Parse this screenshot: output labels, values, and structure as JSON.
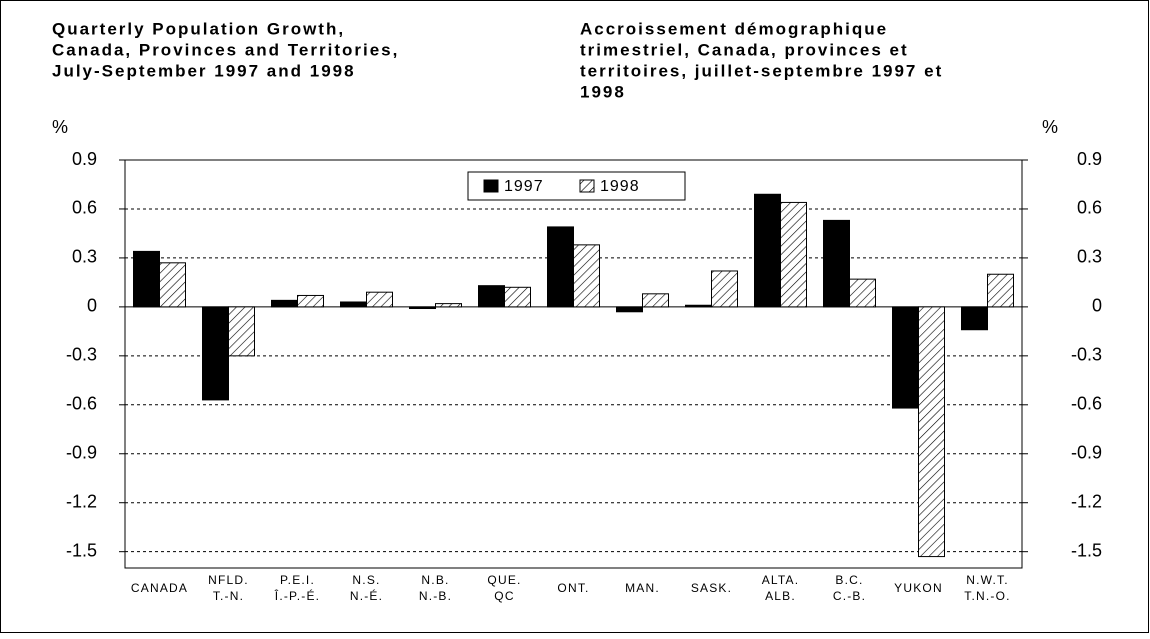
{
  "chart_data": {
    "type": "bar",
    "title_lines": [
      "Quarterly Population Growth,",
      "Canada, Provinces and Territories,",
      "July-September 1997 and 1998"
    ],
    "subtitle_lines": [
      "Accroissement démographique",
      "trimestriel, Canada, provinces et",
      "territoires, juillet-septembre 1997 et",
      "1998"
    ],
    "y_label": "%",
    "categories": [
      [
        "CANADA"
      ],
      [
        "NFLD.",
        "T.-N."
      ],
      [
        "P.E.I.",
        "Î.-P.-É."
      ],
      [
        "N.S.",
        "N.-É."
      ],
      [
        "N.B.",
        "N.-B."
      ],
      [
        "QUE.",
        "QC"
      ],
      [
        "ONT."
      ],
      [
        "MAN."
      ],
      [
        "SASK."
      ],
      [
        "ALTA.",
        "ALB."
      ],
      [
        "B.C.",
        "C.-B."
      ],
      [
        "YUKON"
      ],
      [
        "N.W.T.",
        "T.N.-O."
      ]
    ],
    "series": [
      {
        "name": "1997",
        "color": "#000000",
        "fill": "solid",
        "values": [
          0.34,
          -0.57,
          0.04,
          0.03,
          -0.01,
          0.13,
          0.49,
          -0.03,
          0.01,
          0.69,
          0.53,
          -0.62,
          -0.14
        ]
      },
      {
        "name": "1998",
        "color": "#000000",
        "fill": "hatch",
        "values": [
          0.27,
          -0.3,
          0.07,
          0.09,
          0.02,
          0.12,
          0.38,
          0.08,
          0.22,
          0.64,
          0.17,
          -1.53,
          0.2
        ]
      }
    ],
    "ylim": [
      -1.6,
      0.9
    ],
    "yticks": [
      0.9,
      0.6,
      0.3,
      0,
      -0.3,
      -0.6,
      -0.9,
      -1.2,
      -1.5
    ],
    "grid": true,
    "legend": "top"
  }
}
